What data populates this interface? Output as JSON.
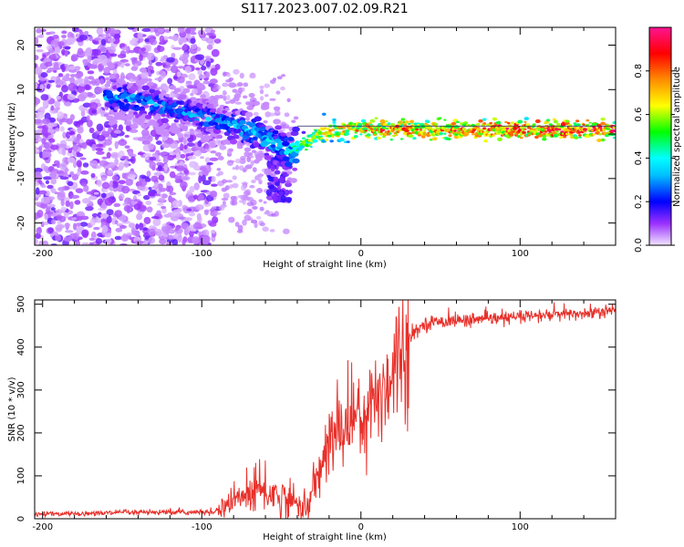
{
  "title": "S117.2023.007.02.09.R21",
  "chart_data": [
    {
      "type": "heatmap",
      "name": "spectrogram",
      "xlabel": "Height of straight line (km)",
      "ylabel": "Frequency (Hz)",
      "xlim": [
        -205,
        160
      ],
      "ylim": [
        -25,
        24
      ],
      "xticks": [
        -200,
        -100,
        0,
        100
      ],
      "yticks": [
        -20,
        -10,
        0,
        10,
        20
      ],
      "colorbar": {
        "label": "Normalized spectral amplitude",
        "range": [
          0.0,
          1.0
        ],
        "ticks": [
          0.0,
          0.2,
          0.4,
          0.6,
          0.8
        ],
        "tick_labels": [
          "0.0",
          "0.2",
          "0.4",
          "0.6",
          "0.8"
        ],
        "colormap": [
          "#f0e0ff",
          "#8a2be2",
          "#0000ff",
          "#00ffff",
          "#00ff00",
          "#ffff00",
          "#ff8000",
          "#ff0000",
          "#ff0080"
        ]
      },
      "ridge": {
        "description": "Dominant frequency track",
        "x": [
          -145,
          -110,
          -90,
          -70,
          -55,
          -45,
          -35,
          -25,
          -15,
          0,
          20,
          50,
          80,
          100,
          130,
          160
        ],
        "y": [
          8,
          5,
          3,
          1,
          -2,
          -4,
          -2,
          0,
          1,
          1,
          1,
          1,
          1,
          1,
          1,
          1
        ],
        "amplitude": [
          0.35,
          0.35,
          0.35,
          0.4,
          0.4,
          0.45,
          0.6,
          0.7,
          0.75,
          0.8,
          0.85,
          0.85,
          0.9,
          0.9,
          0.9,
          0.9
        ]
      }
    },
    {
      "type": "line",
      "name": "snr",
      "xlabel": "Height of straight line (km)",
      "ylabel": "SNR (10 * v/v)",
      "xlim": [
        -205,
        160
      ],
      "ylim": [
        0,
        510
      ],
      "xticks": [
        -200,
        -100,
        0,
        100
      ],
      "yticks": [
        0,
        100,
        200,
        300,
        400,
        500
      ],
      "color": "#e8302a",
      "series": [
        {
          "name": "SNR",
          "x": [
            -205,
            -180,
            -150,
            -120,
            -100,
            -90,
            -80,
            -70,
            -60,
            -50,
            -40,
            -33,
            -30,
            -25,
            -20,
            -15,
            -10,
            -5,
            0,
            5,
            10,
            15,
            20,
            25,
            30,
            35,
            40,
            50,
            60,
            80,
            100,
            120,
            140,
            160
          ],
          "y": [
            10,
            12,
            14,
            15,
            15,
            20,
            40,
            60,
            65,
            50,
            35,
            25,
            70,
            120,
            175,
            200,
            220,
            240,
            245,
            255,
            280,
            310,
            350,
            395,
            420,
            440,
            455,
            460,
            462,
            465,
            470,
            475,
            478,
            485
          ]
        }
      ]
    }
  ]
}
